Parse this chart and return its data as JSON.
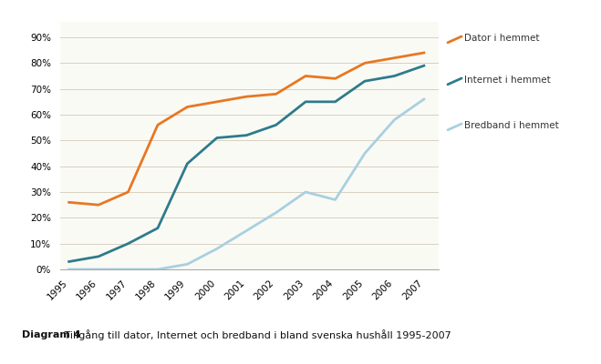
{
  "years": [
    1995,
    1996,
    1997,
    1998,
    1999,
    2000,
    2001,
    2002,
    2003,
    2004,
    2005,
    2006,
    2007
  ],
  "dator": [
    0.26,
    0.25,
    0.3,
    0.56,
    0.63,
    0.65,
    0.67,
    0.68,
    0.75,
    0.74,
    0.8,
    0.82,
    0.84
  ],
  "internet": [
    0.03,
    0.05,
    0.1,
    0.16,
    0.41,
    0.51,
    0.52,
    0.56,
    0.65,
    0.65,
    0.73,
    0.75,
    0.79
  ],
  "bredband": [
    0.0,
    0.0,
    0.0,
    0.0,
    0.02,
    0.08,
    0.15,
    0.22,
    0.3,
    0.27,
    0.45,
    0.58,
    0.66
  ],
  "dator_color": "#E87722",
  "internet_color": "#2E7B8C",
  "bredband_color": "#A8D0E0",
  "dator_label": "Dator i hemmet",
  "internet_label": "Internet i hemmet",
  "bredband_label": "Bredband i hemmet",
  "yticks": [
    0.0,
    0.1,
    0.2,
    0.3,
    0.4,
    0.5,
    0.6,
    0.7,
    0.8,
    0.9
  ],
  "ylim": [
    0.0,
    0.96
  ],
  "caption_bold": "Diagram 4",
  "caption_text": " Tillgång till dator, Internet och bredband i bland svenska hushåll 1995-2007",
  "line_width": 2.0,
  "grid_color": "#D8D0C0",
  "caption_box_color": "#B8D4E0",
  "caption_box_fill": "#D4E8F0"
}
